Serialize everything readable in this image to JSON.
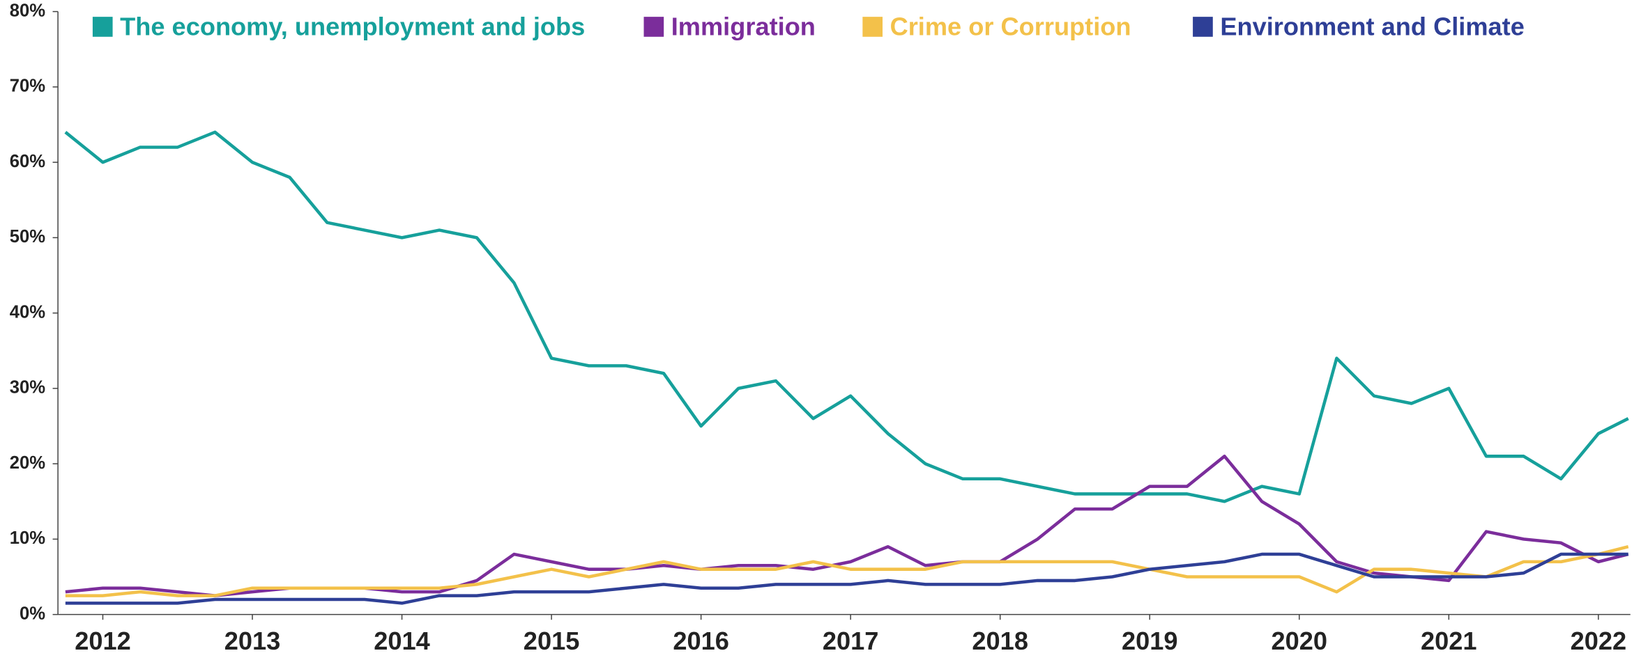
{
  "chart_data": {
    "type": "line",
    "x": [
      2011.75,
      2012.0,
      2012.25,
      2012.5,
      2012.75,
      2013.0,
      2013.25,
      2013.5,
      2013.75,
      2014.0,
      2014.25,
      2014.5,
      2014.75,
      2015.0,
      2015.25,
      2015.5,
      2015.75,
      2016.0,
      2016.25,
      2016.5,
      2016.75,
      2017.0,
      2017.25,
      2017.5,
      2017.75,
      2018.0,
      2018.25,
      2018.5,
      2018.75,
      2019.0,
      2019.25,
      2019.5,
      2019.75,
      2020.0,
      2020.25,
      2020.5,
      2020.75,
      2021.0,
      2021.25,
      2021.5,
      2021.75,
      2022.0,
      2022.2
    ],
    "series": [
      {
        "name": "The economy, unemployment and jobs",
        "color": "#16a09b",
        "values": [
          64,
          60,
          62,
          62,
          64,
          60,
          58,
          52,
          51,
          50,
          51,
          50,
          44,
          34,
          33,
          33,
          32,
          25,
          30,
          31,
          26,
          29,
          24,
          20,
          18,
          18,
          17,
          16,
          16,
          16,
          16,
          15,
          17,
          16,
          34,
          29,
          28,
          30,
          21,
          21,
          18,
          24,
          26
        ]
      },
      {
        "name": "Immigration",
        "color": "#7b2d9b",
        "values": [
          3,
          3.5,
          3.5,
          3,
          2.5,
          3,
          3.5,
          3.5,
          3.5,
          3,
          3,
          4.5,
          8,
          7,
          6,
          6,
          6.5,
          6,
          6.5,
          6.5,
          6,
          7,
          9,
          6.5,
          7,
          7,
          10,
          14,
          14,
          17,
          17,
          21,
          15,
          12,
          7,
          5.5,
          5,
          4.5,
          11,
          10,
          9.5,
          7,
          8
        ]
      },
      {
        "name": "Crime or Corruption",
        "color": "#f3c14a",
        "values": [
          2.5,
          2.5,
          3,
          2.5,
          2.5,
          3.5,
          3.5,
          3.5,
          3.5,
          3.5,
          3.5,
          4,
          5,
          6,
          5,
          6,
          7,
          6,
          6,
          6,
          7,
          6,
          6,
          6,
          7,
          7,
          7,
          7,
          7,
          6,
          5,
          5,
          5,
          5,
          3,
          6,
          6,
          5.5,
          5,
          7,
          7,
          8,
          9
        ]
      },
      {
        "name": "Environment and Climate",
        "color": "#2e3f96",
        "values": [
          1.5,
          1.5,
          1.5,
          1.5,
          2,
          2,
          2,
          2,
          2,
          1.5,
          2.5,
          2.5,
          3,
          3,
          3,
          3.5,
          4,
          3.5,
          3.5,
          4,
          4,
          4,
          4.5,
          4,
          4,
          4,
          4.5,
          4.5,
          5,
          6,
          6.5,
          7,
          8,
          8,
          6.5,
          5,
          5,
          5,
          5,
          5.5,
          8,
          8,
          8
        ]
      }
    ],
    "xlim": [
      2011.7,
      2022.2
    ],
    "xticks": [
      2012,
      2013,
      2014,
      2015,
      2016,
      2017,
      2018,
      2019,
      2020,
      2021,
      2022
    ],
    "ylim": [
      0,
      80
    ],
    "yticks": [
      {
        "value": 0,
        "label": "0%"
      },
      {
        "value": 10,
        "label": "10%"
      },
      {
        "value": 20,
        "label": "20%"
      },
      {
        "value": 30,
        "label": "30%"
      },
      {
        "value": 40,
        "label": "40%"
      },
      {
        "value": 50,
        "label": "50%"
      },
      {
        "value": 60,
        "label": "60%"
      },
      {
        "value": 70,
        "label": "70%"
      },
      {
        "value": 80,
        "label": "80%"
      }
    ],
    "legend": "top"
  }
}
